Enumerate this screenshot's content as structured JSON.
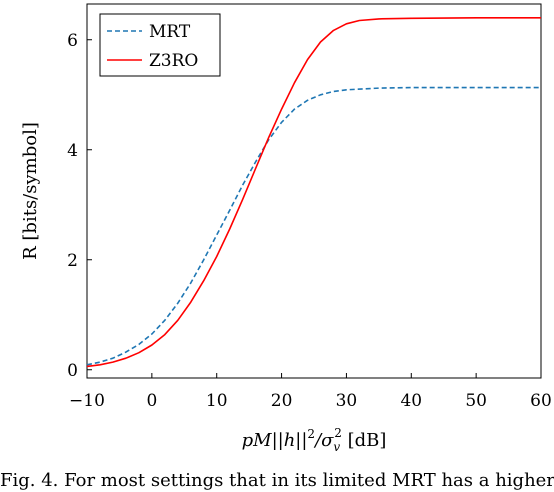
{
  "chart_data": {
    "type": "line",
    "xlabel_parts": {
      "p": "pM",
      "mid": "||h||",
      "sup2": "2",
      "slash": "/σ",
      "sub": "v",
      "sup2b": "2",
      "unit": " [dB]"
    },
    "ylabel": "R [bits/symbol]",
    "xlim": [
      -10,
      60
    ],
    "ylim": [
      -0.15,
      6.65
    ],
    "xticks": [
      -10,
      0,
      10,
      20,
      30,
      40,
      50,
      60
    ],
    "xtick_labels": [
      "−10",
      "0",
      "10",
      "20",
      "30",
      "40",
      "50",
      "60"
    ],
    "yticks": [
      0,
      2,
      4,
      6
    ],
    "ytick_labels": [
      "0",
      "2",
      "4",
      "6"
    ],
    "grid": false,
    "legend_position": "top-left",
    "series": [
      {
        "name": "MRT",
        "color": "#1f77b4",
        "style": "dashed",
        "points": [
          [
            -10,
            0.09
          ],
          [
            -8,
            0.14
          ],
          [
            -6,
            0.21
          ],
          [
            -4,
            0.32
          ],
          [
            -2,
            0.46
          ],
          [
            0,
            0.65
          ],
          [
            2,
            0.9
          ],
          [
            4,
            1.21
          ],
          [
            6,
            1.58
          ],
          [
            8,
            2.0
          ],
          [
            10,
            2.45
          ],
          [
            12,
            2.9
          ],
          [
            14,
            3.36
          ],
          [
            16,
            3.78
          ],
          [
            18,
            4.18
          ],
          [
            20,
            4.5
          ],
          [
            22,
            4.74
          ],
          [
            24,
            4.9
          ],
          [
            26,
            5.0
          ],
          [
            28,
            5.06
          ],
          [
            30,
            5.09
          ],
          [
            35,
            5.12
          ],
          [
            40,
            5.13
          ],
          [
            50,
            5.13
          ],
          [
            60,
            5.13
          ]
        ]
      },
      {
        "name": "Z3RO",
        "color": "#ff0000",
        "style": "solid",
        "points": [
          [
            -10,
            0.06
          ],
          [
            -8,
            0.09
          ],
          [
            -6,
            0.14
          ],
          [
            -4,
            0.21
          ],
          [
            -2,
            0.31
          ],
          [
            0,
            0.45
          ],
          [
            2,
            0.64
          ],
          [
            4,
            0.9
          ],
          [
            6,
            1.23
          ],
          [
            8,
            1.62
          ],
          [
            10,
            2.06
          ],
          [
            12,
            2.56
          ],
          [
            14,
            3.1
          ],
          [
            16,
            3.66
          ],
          [
            18,
            4.22
          ],
          [
            20,
            4.74
          ],
          [
            22,
            5.22
          ],
          [
            24,
            5.64
          ],
          [
            26,
            5.96
          ],
          [
            28,
            6.17
          ],
          [
            30,
            6.29
          ],
          [
            32,
            6.35
          ],
          [
            35,
            6.38
          ],
          [
            40,
            6.39
          ],
          [
            50,
            6.4
          ],
          [
            60,
            6.4
          ]
        ]
      }
    ]
  },
  "caption_text": "Fig. 4. For most settings that in its limited MRT has a higher"
}
